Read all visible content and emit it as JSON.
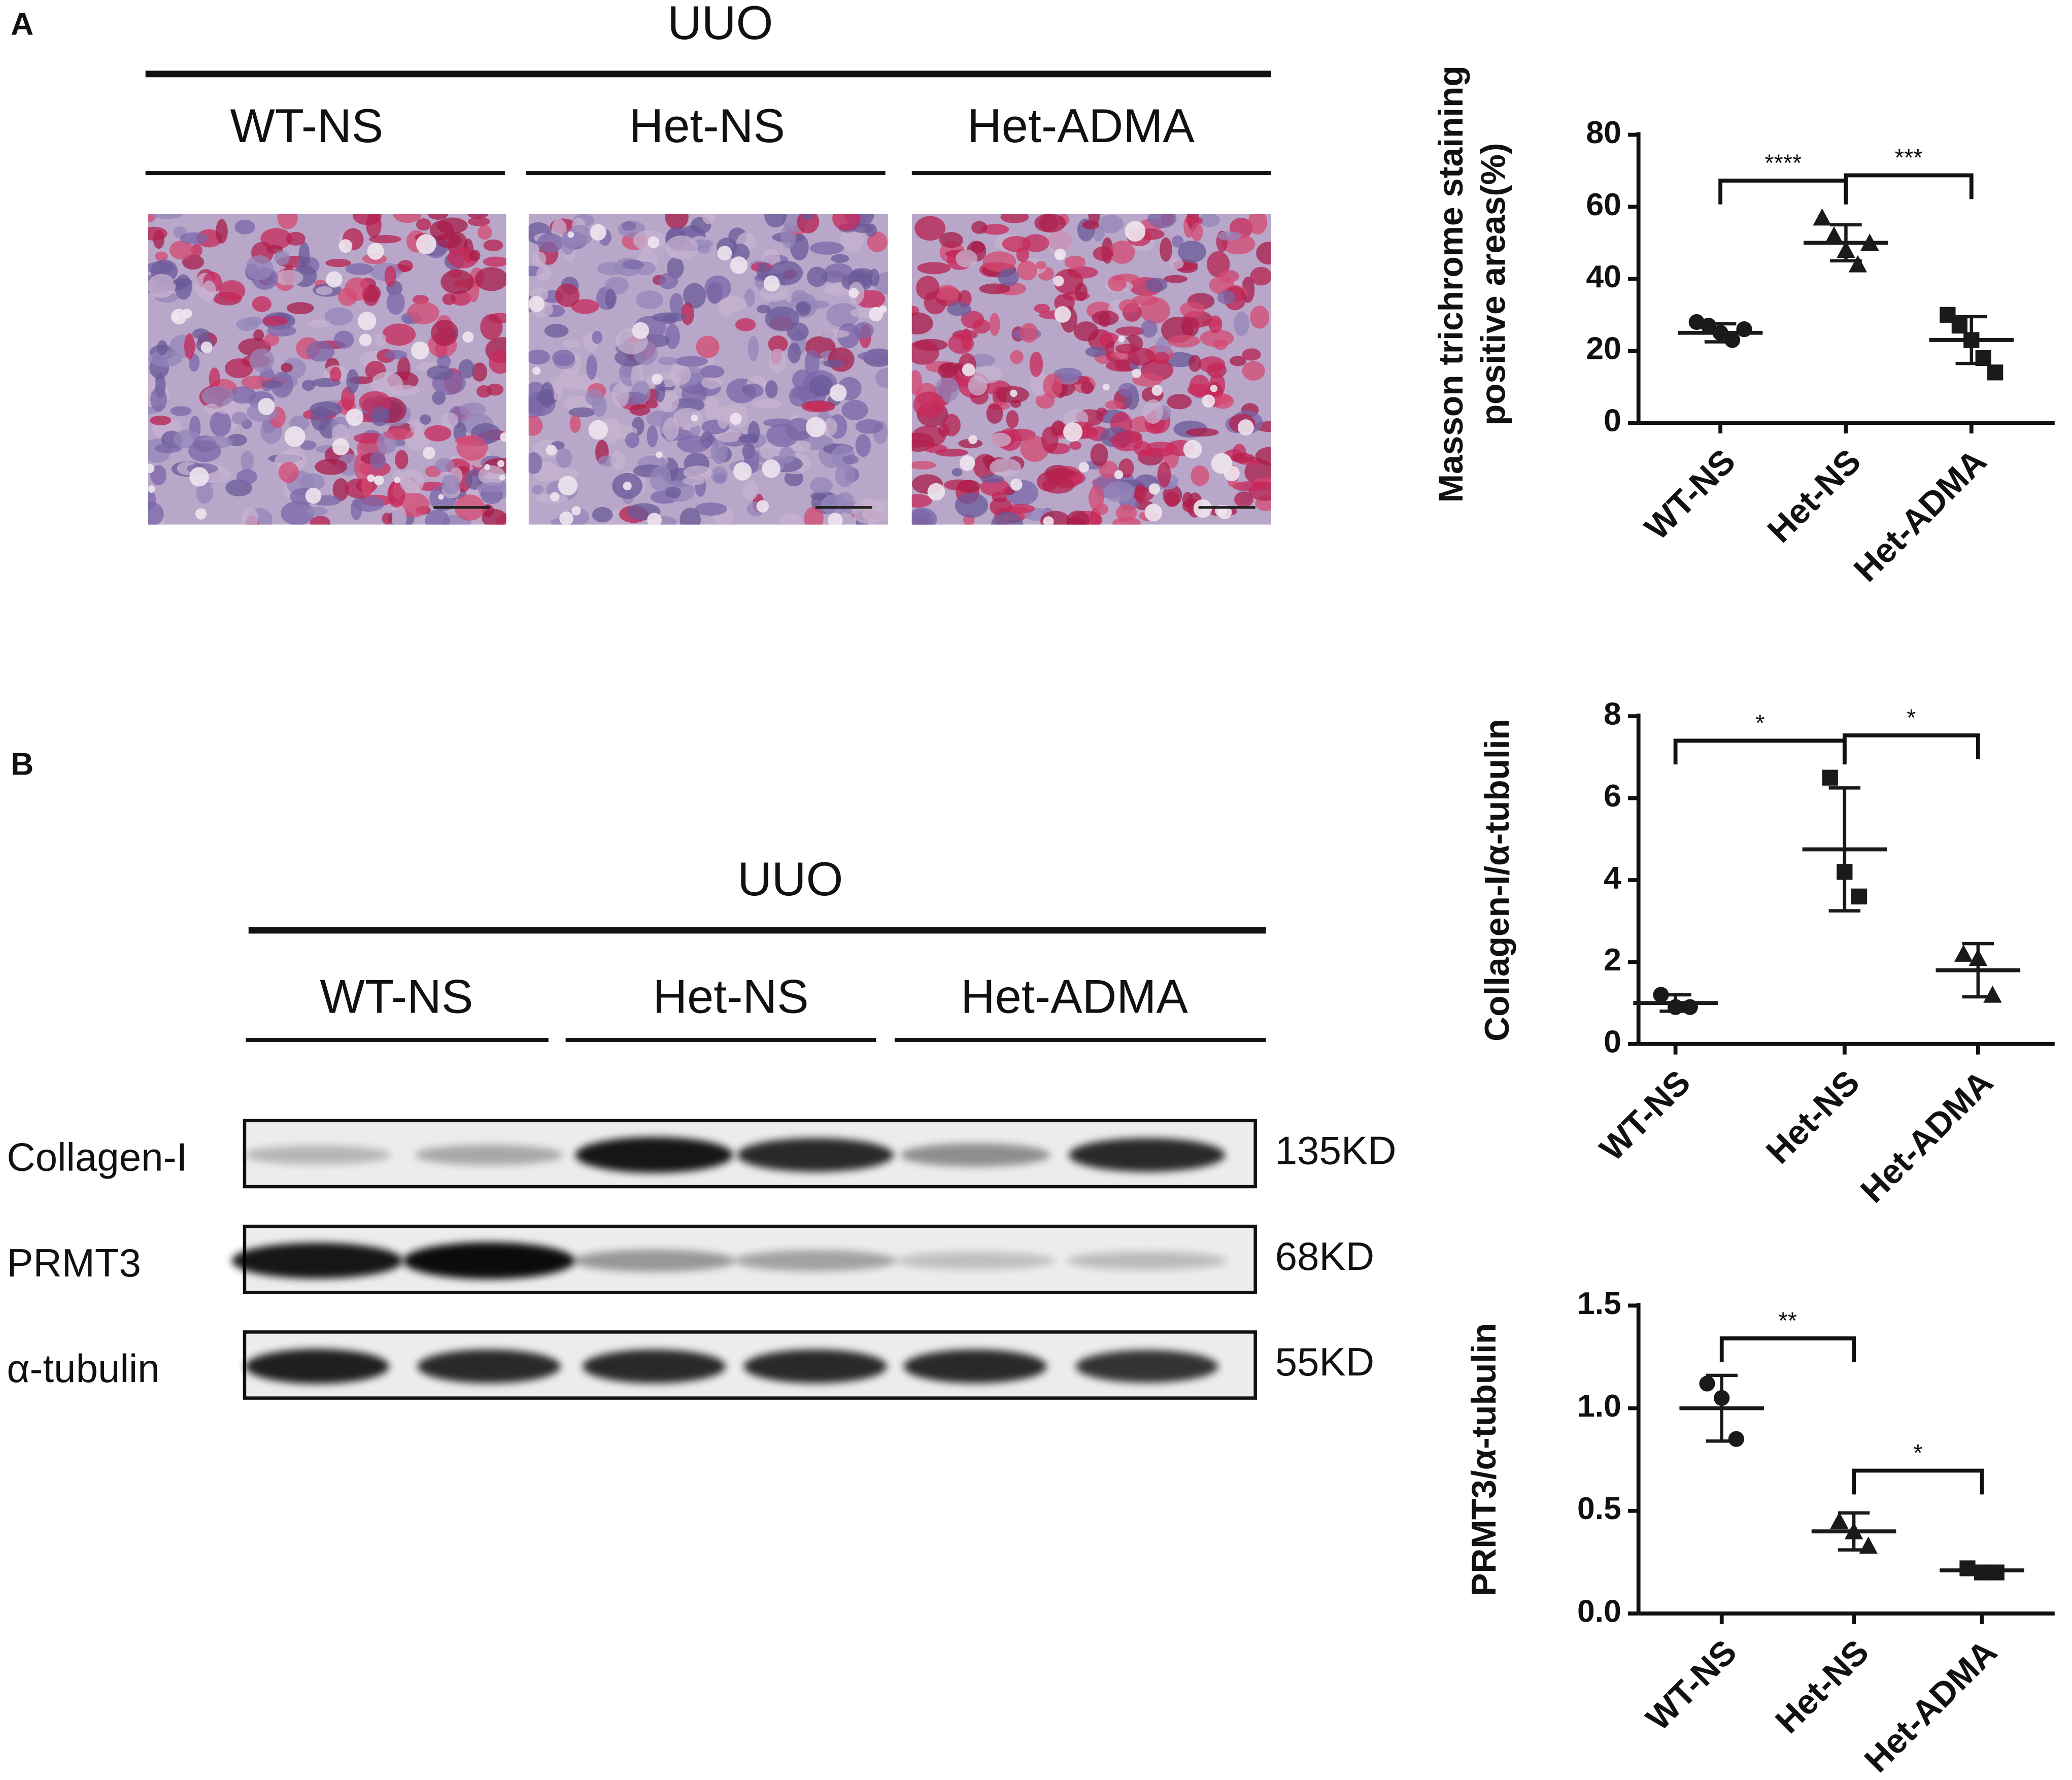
{
  "panel_a": {
    "label": "A",
    "title": "UUO",
    "groups": [
      "WT-NS",
      "Het-NS",
      "Het-ADMA"
    ]
  },
  "panel_b": {
    "label": "B",
    "title": "UUO",
    "groups": [
      "WT-NS",
      "Het-NS",
      "Het-ADMA"
    ],
    "rows": [
      {
        "name": "Collagen-I",
        "size": "135KD"
      },
      {
        "name": "PRMT3",
        "size": "68KD"
      },
      {
        "name": "α-tubulin",
        "size": "55KD"
      }
    ]
  },
  "chart_data": [
    {
      "type": "dot",
      "y_label": [
        "Masson  trichrome staining",
        "positive areas(%)"
      ],
      "categories": [
        "WT-NS",
        "Het-NS",
        "Het-ADMA"
      ],
      "markers": [
        "circle",
        "triangle",
        "square"
      ],
      "color": "#1a1a1a",
      "points": [
        [
          28,
          27,
          25,
          23,
          26
        ],
        [
          57,
          52,
          48,
          44,
          50
        ],
        [
          30,
          27,
          23,
          18,
          14
        ]
      ],
      "means": [
        25,
        50,
        23
      ],
      "errors": [
        2.5,
        5,
        6.5
      ],
      "ylim": [
        0,
        80
      ],
      "yticks": [
        0,
        20,
        40,
        60,
        80
      ],
      "significance": [
        {
          "from": 0,
          "to": 1,
          "label": "****"
        },
        {
          "from": 1,
          "to": 2,
          "label": "***"
        }
      ]
    },
    {
      "type": "dot",
      "y_label": "Collagen-I/α-tubulin",
      "categories": [
        "WT-NS",
        "Het-NS",
        "Het-ADMA"
      ],
      "markers": [
        "circle",
        "square",
        "triangle"
      ],
      "color": "#1a1a1a",
      "points": [
        [
          1.2,
          0.9,
          0.9
        ],
        [
          6.5,
          4.2,
          3.6
        ],
        [
          2.2,
          2.1,
          1.2
        ]
      ],
      "means": [
        1.0,
        4.75,
        1.8
      ],
      "errors": [
        0.2,
        1.5,
        0.65
      ],
      "ylim": [
        0,
        8
      ],
      "yticks": [
        0,
        2,
        4,
        6,
        8
      ],
      "significance": [
        {
          "from": 0,
          "to": 1,
          "label": "*"
        },
        {
          "from": 1,
          "to": 2,
          "label": "*"
        }
      ]
    },
    {
      "type": "dot",
      "y_label": "PRMT3/α-tubulin",
      "categories": [
        "WT-NS",
        "Het-NS",
        "Het-ADMA"
      ],
      "markers": [
        "circle",
        "triangle",
        "square"
      ],
      "color": "#1a1a1a",
      "points": [
        [
          1.12,
          1.05,
          0.85
        ],
        [
          0.45,
          0.4,
          0.33
        ],
        [
          0.22,
          0.2,
          0.2
        ]
      ],
      "means": [
        1.0,
        0.4,
        0.21
      ],
      "errors": [
        0.16,
        0.09,
        0.02
      ],
      "ylim": [
        0,
        1.5
      ],
      "yticks": [
        {
          "value": 0,
          "label": "0.0"
        },
        0.5,
        {
          "value": 1,
          "label": "1.0"
        },
        1.5
      ],
      "significance": [
        {
          "from": 0,
          "to": 1,
          "label": "**"
        },
        {
          "from": 1,
          "to": 2,
          "label": "*"
        }
      ]
    }
  ]
}
